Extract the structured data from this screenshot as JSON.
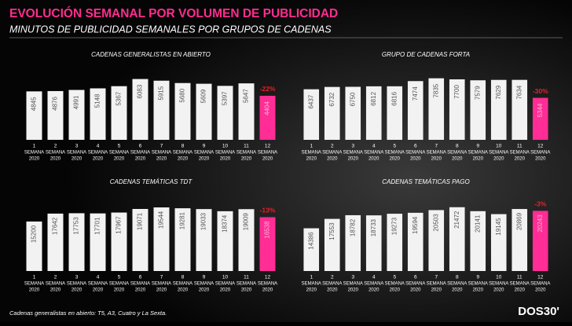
{
  "header": {
    "title": "EVOLUCIÓN SEMANAL POR VOLUMEN DE PUBLICIDAD",
    "subtitle": "MINUTOS DE PUBLICIDAD SEMANALES POR GRUPOS DE CADENAS"
  },
  "chart_data": [
    {
      "type": "bar",
      "title": "CADENAS GENERALISTAS EN ABIERTO",
      "categories": [
        "1",
        "2",
        "3",
        "4",
        "5",
        "6",
        "7",
        "8",
        "9",
        "10",
        "11",
        "12"
      ],
      "category_line2": "SEMANA",
      "category_line3": "2020",
      "values": [
        4845,
        4876,
        4991,
        5148,
        5367,
        6083,
        5915,
        5680,
        5609,
        5397,
        5647,
        4404
      ],
      "colors": [
        "#f2f2f2",
        "#f2f2f2",
        "#f2f2f2",
        "#f2f2f2",
        "#f2f2f2",
        "#f2f2f2",
        "#f2f2f2",
        "#f2f2f2",
        "#f2f2f2",
        "#f2f2f2",
        "#f2f2f2",
        "#ff2d95"
      ],
      "ylim": [
        0,
        6600
      ],
      "change_label": "-22%",
      "change_color": "#e8202a"
    },
    {
      "type": "bar",
      "title": "GRUPO DE CADENAS FORTA",
      "categories": [
        "1",
        "2",
        "3",
        "4",
        "5",
        "6",
        "7",
        "8",
        "9",
        "10",
        "11",
        "12"
      ],
      "category_line2": "SEMANA",
      "category_line3": "2020",
      "values": [
        6437,
        6732,
        6750,
        6812,
        6816,
        7474,
        7835,
        7700,
        7579,
        7629,
        7634,
        5344
      ],
      "colors": [
        "#f2f2f2",
        "#f2f2f2",
        "#f2f2f2",
        "#f2f2f2",
        "#f2f2f2",
        "#f2f2f2",
        "#f2f2f2",
        "#f2f2f2",
        "#f2f2f2",
        "#f2f2f2",
        "#f2f2f2",
        "#ff2d95"
      ],
      "ylim": [
        0,
        8400
      ],
      "change_label": "-30%",
      "change_color": "#e8202a"
    },
    {
      "type": "bar",
      "title": "CADENAS TEMÁTICAS TDT",
      "categories": [
        "1",
        "2",
        "3",
        "4",
        "5",
        "6",
        "7",
        "8",
        "9",
        "10",
        "11",
        "12"
      ],
      "category_line2": "SEMANA",
      "category_line3": "2020",
      "values": [
        15200,
        17642,
        17753,
        17701,
        17967,
        19071,
        19544,
        19281,
        19033,
        18374,
        19009,
        16538
      ],
      "colors": [
        "#f2f2f2",
        "#f2f2f2",
        "#f2f2f2",
        "#f2f2f2",
        "#f2f2f2",
        "#f2f2f2",
        "#f2f2f2",
        "#f2f2f2",
        "#f2f2f2",
        "#f2f2f2",
        "#f2f2f2",
        "#ff2d95"
      ],
      "ylim": [
        0,
        21000
      ],
      "change_label": "-13%",
      "change_color": "#e8202a"
    },
    {
      "type": "bar",
      "title": "CADENAS TEMÁTICAS PAGO",
      "categories": [
        "1",
        "2",
        "3",
        "4",
        "5",
        "6",
        "7",
        "8",
        "9",
        "10",
        "11",
        "12"
      ],
      "category_line2": "SEMANA",
      "category_line3": "2020",
      "values": [
        14386,
        17553,
        18782,
        18733,
        19273,
        19594,
        20503,
        21472,
        20141,
        19145,
        20869,
        20243
      ],
      "colors": [
        "#f2f2f2",
        "#f2f2f2",
        "#f2f2f2",
        "#f2f2f2",
        "#f2f2f2",
        "#f2f2f2",
        "#f2f2f2",
        "#f2f2f2",
        "#f2f2f2",
        "#f2f2f2",
        "#f2f2f2",
        "#ff2d95"
      ],
      "ylim": [
        0,
        23000
      ],
      "change_label": "-3%",
      "change_color": "#e8202a"
    }
  ],
  "footer": {
    "note": "Cadenas generalistas en abierto: T5, A3, Cuatro y La Sexta.",
    "logo": "DOS30'"
  }
}
